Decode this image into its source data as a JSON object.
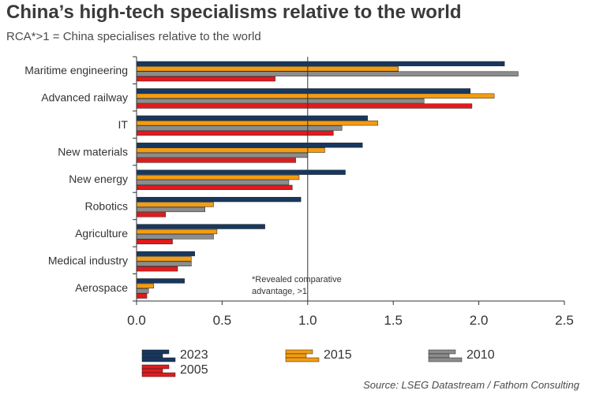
{
  "header": {
    "title": "China’s high-tech specialisms relative to the world",
    "subtitle": "RCA*>1 = China specialises relative to the world"
  },
  "source": "Source: LSEG Datastream / Fathom Consulting",
  "chart_data": {
    "type": "bar",
    "orientation": "horizontal",
    "categories": [
      "Maritime engineering",
      "Advanced railway",
      "IT",
      "New materials",
      "New energy",
      "Robotics",
      "Agriculture",
      "Medical industry",
      "Aerospace"
    ],
    "series": [
      {
        "name": "2023",
        "color": "#17375e",
        "values": [
          2.15,
          1.95,
          1.35,
          1.32,
          1.22,
          0.96,
          0.75,
          0.34,
          0.28
        ]
      },
      {
        "name": "2015",
        "color": "#f39c12",
        "values": [
          1.53,
          2.09,
          1.41,
          1.1,
          0.95,
          0.45,
          0.47,
          0.32,
          0.1
        ]
      },
      {
        "name": "2010",
        "color": "#8c8c8c",
        "values": [
          2.23,
          1.68,
          1.2,
          1.0,
          0.89,
          0.4,
          0.45,
          0.32,
          0.07
        ]
      },
      {
        "name": "2005",
        "color": "#e31a1c",
        "values": [
          0.81,
          1.96,
          1.15,
          0.93,
          0.91,
          0.17,
          0.21,
          0.24,
          0.06
        ]
      }
    ],
    "xlim": [
      0,
      2.5
    ],
    "xticks": [
      "0.0",
      "0.5",
      "1.0",
      "1.5",
      "2.0",
      "2.5"
    ],
    "reference_line": 1.0,
    "annotation": [
      "*Revealed comparative",
      "advantage, >1"
    ],
    "grid": false,
    "legend_position": "bottom"
  }
}
